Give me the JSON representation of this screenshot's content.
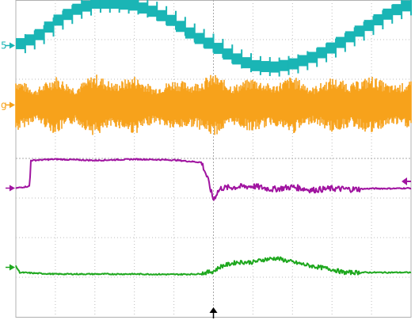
{
  "chart_data": {
    "type": "line",
    "grid": true,
    "divisions": {
      "x": 10,
      "y": 8
    },
    "x_range": [
      0,
      10
    ],
    "y_range": [
      -4,
      4
    ],
    "channel_markers": [
      {
        "label": "5",
        "channel": 1,
        "position": 2.85
      },
      {
        "label": "g",
        "channel": 2,
        "position": 1.35
      },
      {
        "label": "",
        "channel": 3,
        "position": -0.75
      },
      {
        "label": "",
        "channel": 4,
        "position": -2.75
      }
    ],
    "series": [
      {
        "color": "#1ab5b5",
        "style": "stepped",
        "x": [
          0,
          0.5,
          1.0,
          1.5,
          2.0,
          2.5,
          3.0,
          3.5,
          4.0,
          4.5,
          5.0,
          5.5,
          6.0,
          6.5,
          7.0,
          7.5,
          8.0,
          8.5,
          9.0,
          9.5,
          10.0
        ],
        "y": [
          2.85,
          3.05,
          3.45,
          3.75,
          3.92,
          3.92,
          3.87,
          3.7,
          3.45,
          3.1,
          2.85,
          2.55,
          2.35,
          2.3,
          2.38,
          2.55,
          2.8,
          3.1,
          3.4,
          3.7,
          3.9
        ]
      },
      {
        "color": "#f7a21b",
        "style": "noise-band",
        "x": [
          0,
          0.5,
          1.0,
          1.5,
          2.0,
          2.5,
          3.0,
          3.5,
          4.0,
          4.5,
          5.0,
          5.5,
          6.0,
          6.5,
          7.0,
          7.5,
          8.0,
          8.5,
          9.0,
          9.5,
          10.0
        ],
        "center": [
          1.35,
          1.35,
          1.35,
          1.35,
          1.35,
          1.35,
          1.35,
          1.35,
          1.35,
          1.35,
          1.35,
          1.35,
          1.35,
          1.35,
          1.35,
          1.35,
          1.35,
          1.35,
          1.35,
          1.35,
          1.35
        ],
        "amplitude": [
          0.7,
          0.4,
          0.75,
          0.45,
          0.8,
          0.55,
          0.75,
          0.45,
          0.65,
          0.55,
          0.8,
          0.5,
          0.7,
          0.5,
          0.75,
          0.45,
          0.7,
          0.55,
          0.75,
          0.5,
          0.6
        ]
      },
      {
        "color": "#a014a0",
        "style": "line",
        "x": [
          0,
          0.35,
          0.38,
          1.0,
          2.0,
          3.0,
          4.0,
          4.7,
          4.85,
          5.0,
          5.1,
          5.2,
          5.6,
          6.0,
          6.5,
          7.0,
          7.5,
          8.0,
          8.5,
          9.0,
          9.5,
          10.0
        ],
        "y": [
          -0.75,
          -0.7,
          -0.05,
          -0.02,
          -0.05,
          -0.02,
          -0.04,
          -0.1,
          -0.5,
          -1.05,
          -0.85,
          -0.75,
          -0.72,
          -0.7,
          -0.78,
          -0.72,
          -0.8,
          -0.76,
          -0.78,
          -0.76,
          -0.76,
          -0.75
        ]
      },
      {
        "color": "#1fa81f",
        "style": "line",
        "x": [
          0,
          0.1,
          0.5,
          1.0,
          2.0,
          3.0,
          4.0,
          4.6,
          5.0,
          5.2,
          5.6,
          6.0,
          6.3,
          6.6,
          7.0,
          7.5,
          8.0,
          8.3,
          9.0,
          10.0
        ],
        "y": [
          -2.72,
          -2.88,
          -2.9,
          -2.92,
          -2.92,
          -2.92,
          -2.93,
          -2.92,
          -2.85,
          -2.72,
          -2.62,
          -2.62,
          -2.55,
          -2.52,
          -2.62,
          -2.72,
          -2.8,
          -2.88,
          -2.88,
          -2.88
        ]
      }
    ],
    "trigger_marker": {
      "x": 5.0
    },
    "right_marker": {
      "channel": 3,
      "position": -0.1
    }
  }
}
